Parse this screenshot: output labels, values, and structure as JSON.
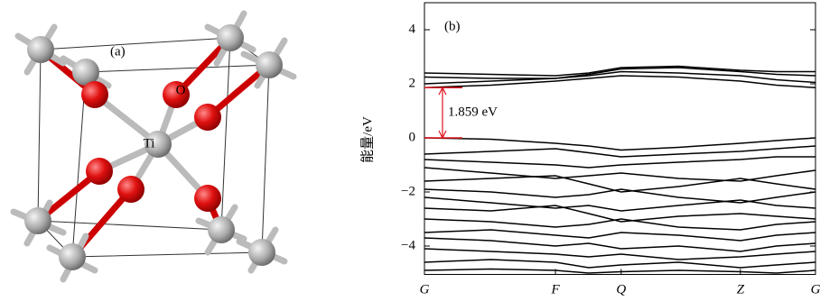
{
  "structure": {
    "label": "(a)",
    "atoms": [
      "O",
      "Ti"
    ]
  },
  "chart_data": {
    "type": "line",
    "panel_label": "(b)",
    "ylabel": "能量/eV",
    "color": "#000000",
    "x": [
      0,
      0.17,
      0.335,
      0.42,
      0.503,
      0.65,
      0.808,
      0.9,
      1.0
    ],
    "xlim": [
      0,
      1.0
    ],
    "xticks": [
      {
        "value": 0,
        "label": "G"
      },
      {
        "value": 0.335,
        "label": "F"
      },
      {
        "value": 0.503,
        "label": "Q"
      },
      {
        "value": 0.808,
        "label": "Z"
      },
      {
        "value": 1.0,
        "label": "G"
      }
    ],
    "ylim": [
      -5.05,
      5.0
    ],
    "yticks": [
      {
        "value": -4,
        "label": "−4"
      },
      {
        "value": -2,
        "label": "−2"
      },
      0,
      2,
      4
    ],
    "annotation": {
      "text": "1.859 eV",
      "color": "#e0141e",
      "values": [
        0,
        1.859
      ]
    },
    "series": [
      {
        "values": [
          1.86,
          1.95,
          2.1,
          2.2,
          2.3,
          2.25,
          2.1,
          1.95,
          1.86
        ]
      },
      {
        "values": [
          2.0,
          2.1,
          2.2,
          2.3,
          2.45,
          2.4,
          2.3,
          2.15,
          2.05
        ]
      },
      {
        "values": [
          2.25,
          2.2,
          2.2,
          2.35,
          2.55,
          2.6,
          2.45,
          2.35,
          2.3
        ]
      },
      {
        "values": [
          2.4,
          2.35,
          2.3,
          2.4,
          2.6,
          2.65,
          2.5,
          2.45,
          2.45
        ]
      },
      {
        "values": [
          0,
          -0.05,
          -0.2,
          -0.3,
          -0.45,
          -0.35,
          -0.2,
          -0.1,
          0
        ]
      },
      {
        "values": [
          -0.6,
          -0.5,
          -0.4,
          -0.55,
          -0.7,
          -0.6,
          -0.5,
          -0.4,
          -0.3
        ]
      },
      {
        "values": [
          -0.8,
          -0.9,
          -1.0,
          -1.1,
          -1.0,
          -0.9,
          -0.8,
          -0.7,
          -0.7
        ]
      },
      {
        "values": [
          -1.1,
          -1.3,
          -1.5,
          -1.4,
          -1.3,
          -1.5,
          -1.6,
          -1.4,
          -1.2
        ]
      },
      {
        "values": [
          -1.6,
          -1.5,
          -1.4,
          -1.7,
          -2.0,
          -1.8,
          -1.5,
          -1.7,
          -1.9
        ]
      },
      {
        "values": [
          -1.9,
          -2.0,
          -2.2,
          -2.1,
          -1.9,
          -2.2,
          -2.4,
          -2.2,
          -2.0
        ]
      },
      {
        "values": [
          -2.2,
          -2.4,
          -2.6,
          -2.5,
          -2.7,
          -2.5,
          -2.3,
          -2.5,
          -2.6
        ]
      },
      {
        "values": [
          -2.6,
          -2.7,
          -2.5,
          -2.8,
          -3.1,
          -2.9,
          -2.8,
          -2.9,
          -3.0
        ]
      },
      {
        "values": [
          -3.0,
          -3.1,
          -3.3,
          -3.2,
          -3.0,
          -3.3,
          -3.4,
          -3.2,
          -3.1
        ]
      },
      {
        "values": [
          -3.5,
          -3.4,
          -3.6,
          -3.7,
          -3.5,
          -3.6,
          -3.8,
          -3.6,
          -3.5
        ]
      },
      {
        "values": [
          -3.7,
          -3.8,
          -4.0,
          -3.9,
          -4.1,
          -4.0,
          -4.2,
          -4.0,
          -3.9
        ]
      },
      {
        "values": [
          -4.1,
          -4.2,
          -4.3,
          -4.4,
          -4.3,
          -4.5,
          -4.4,
          -4.3,
          -4.2
        ]
      },
      {
        "values": [
          -4.6,
          -4.5,
          -4.6,
          -4.8,
          -4.7,
          -4.6,
          -4.8,
          -4.7,
          -4.6
        ]
      },
      {
        "values": [
          -4.9,
          -4.85,
          -4.9,
          -5.0,
          -4.95,
          -4.9,
          -4.95,
          -5.0,
          -4.9
        ]
      }
    ]
  }
}
